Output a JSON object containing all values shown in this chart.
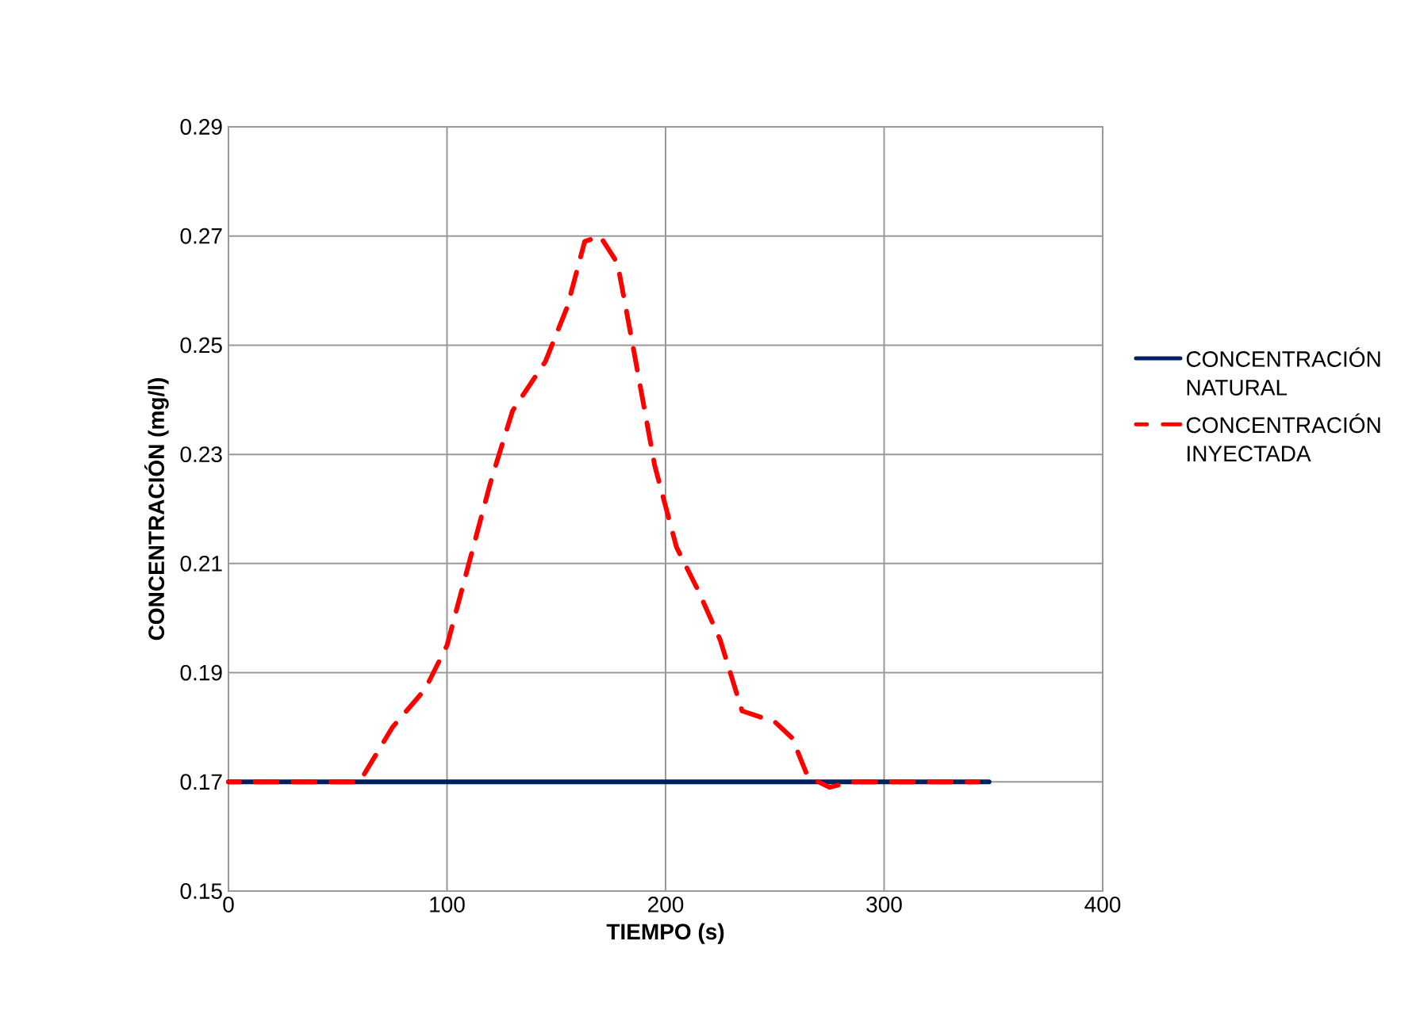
{
  "chart_data": {
    "type": "line",
    "xlabel": "TIEMPO (s)",
    "ylabel": "CONCENTRACIÓN (mg/l)",
    "xlim": [
      0,
      400
    ],
    "xticks": [
      0,
      100,
      200,
      300,
      400
    ],
    "ylim": [
      0.15,
      0.29
    ],
    "yticks": [
      0.15,
      0.17,
      0.19,
      0.21,
      0.23,
      0.25,
      0.27,
      0.29
    ],
    "grid": true,
    "legend": "right",
    "marker": "none",
    "series": [
      {
        "name": "CONCENTRACIÓN NATURAL",
        "color": "#002060",
        "line_style": "solid",
        "x": [
          0,
          348
        ],
        "values": [
          0.17,
          0.17
        ]
      },
      {
        "name": "CONCENTRACIÓN INYECTADA",
        "color": "#ff0000",
        "line_style": "dashed",
        "x": [
          0,
          60,
          75,
          90,
          100,
          110,
          120,
          130,
          145,
          155,
          163,
          170,
          178,
          185,
          195,
          205,
          215,
          225,
          235,
          250,
          258,
          265,
          275,
          285,
          343
        ],
        "values": [
          0.17,
          0.17,
          0.18,
          0.187,
          0.195,
          0.21,
          0.225,
          0.238,
          0.247,
          0.257,
          0.269,
          0.27,
          0.265,
          0.25,
          0.228,
          0.213,
          0.205,
          0.196,
          0.183,
          0.181,
          0.178,
          0.171,
          0.169,
          0.17,
          0.17
        ]
      }
    ]
  }
}
